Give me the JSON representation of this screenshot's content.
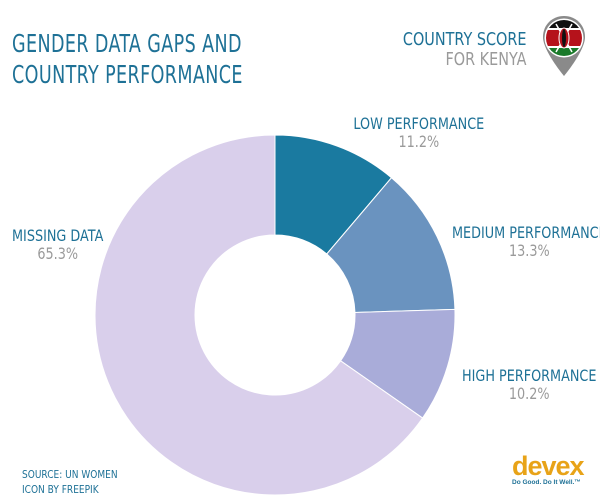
{
  "title": {
    "line1": "GENDER DATA GAPS AND",
    "line2": "COUNTRY PERFORMANCE"
  },
  "country_score": {
    "line1": "COUNTRY SCORE",
    "line2": "FOR KENYA"
  },
  "colors": {
    "accent": "#1e7196",
    "low": "#1a7aa0",
    "medium": "#6a93bf",
    "high": "#a9acd9",
    "missing": "#d9cfeb",
    "muted": "#9a9a9a",
    "devex": "#e8a318"
  },
  "chart_data": {
    "type": "pie",
    "donut": true,
    "title": "Gender data gaps and country performance",
    "slices": [
      {
        "name": "LOW PERFORMANCE",
        "value": 11.2,
        "label": "11.2%",
        "color_key": "low"
      },
      {
        "name": "MEDIUM PERFORMANCE",
        "value": 13.3,
        "label": "13.3%",
        "color_key": "medium"
      },
      {
        "name": "HIGH PERFORMANCE",
        "value": 10.2,
        "label": "10.2%",
        "color_key": "high"
      },
      {
        "name": "MISSING DATA",
        "value": 65.3,
        "label": "65.3%",
        "color_key": "missing"
      }
    ]
  },
  "footer": {
    "source": "SOURCE: UN WOMEN",
    "icon_credit": "ICON BY FREEPIK",
    "brand": "devex",
    "tagline": "Do Good. Do It Well.™"
  },
  "icons": {
    "pin": "kenya-flag-pin-icon"
  }
}
